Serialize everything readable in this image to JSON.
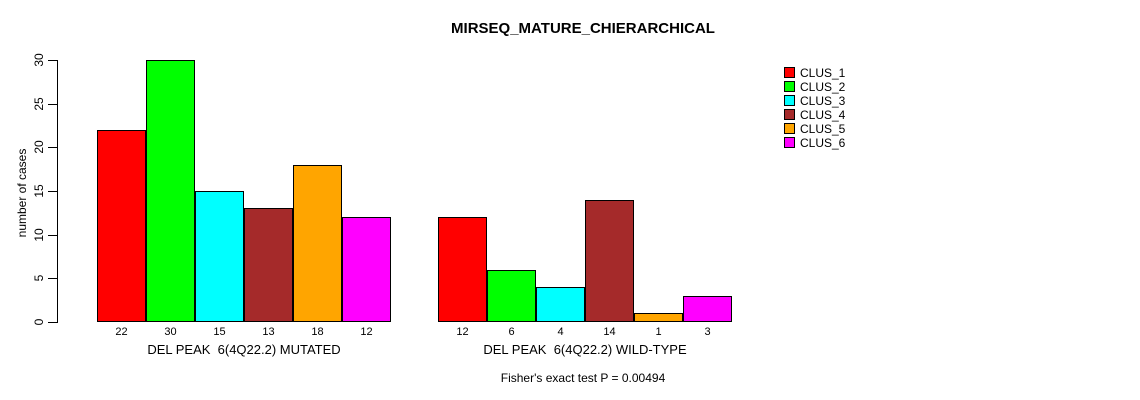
{
  "title": "MIRSEQ_MATURE_CHIERARCHICAL",
  "footer": "Fisher's exact test P = 0.00494",
  "y_axis": {
    "label": "number of cases",
    "ticks": [
      "0",
      "5",
      "10",
      "15",
      "20",
      "25",
      "30"
    ]
  },
  "legend": {
    "items": [
      "CLUS_1",
      "CLUS_2",
      "CLUS_3",
      "CLUS_4",
      "CLUS_5",
      "CLUS_6"
    ]
  },
  "chart_data": {
    "type": "bar",
    "title": "MIRSEQ_MATURE_CHIERARCHICAL",
    "categories": [
      "DEL PEAK  6(4Q22.2) MUTATED",
      "DEL PEAK  6(4Q22.2) WILD-TYPE"
    ],
    "series": [
      {
        "name": "CLUS_1",
        "color": "#FF0000",
        "values": [
          22,
          12
        ]
      },
      {
        "name": "CLUS_2",
        "color": "#00FF00",
        "values": [
          30,
          6
        ]
      },
      {
        "name": "CLUS_3",
        "color": "#00FFFF",
        "values": [
          15,
          4
        ]
      },
      {
        "name": "CLUS_4",
        "color": "#A52A2A",
        "values": [
          13,
          14
        ]
      },
      {
        "name": "CLUS_5",
        "color": "#FFA500",
        "values": [
          18,
          1
        ]
      },
      {
        "name": "CLUS_6",
        "color": "#FF00FF",
        "values": [
          12,
          3
        ]
      }
    ],
    "xlabel": "",
    "ylabel": "number of cases",
    "ylim": [
      0,
      30
    ],
    "yticks": [
      0,
      5,
      10,
      15,
      20,
      25,
      30
    ],
    "bar_value_labels": true,
    "legend_position": "right",
    "grid": false,
    "annotation": "Fisher's exact test P = 0.00494"
  }
}
